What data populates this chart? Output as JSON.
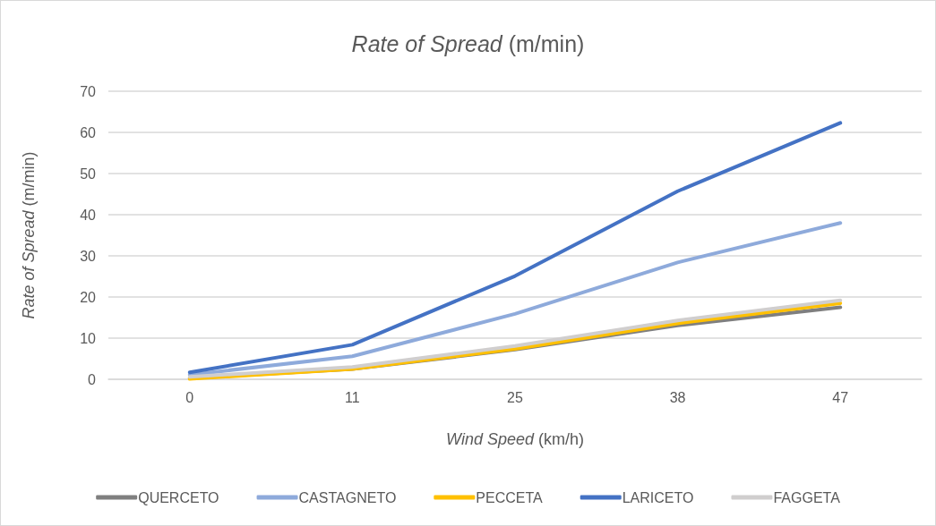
{
  "chart_data": {
    "type": "line",
    "title": "Rate of Spread (m/min)",
    "xlabel": "Wind Speed (km/h)",
    "ylabel": "Rate of Spread (m/min)",
    "categories": [
      "0",
      "11",
      "25",
      "38",
      "47"
    ],
    "series": [
      {
        "name": "QUERCETO",
        "color": "#7f7f7f",
        "values": [
          0.3,
          2.5,
          7.2,
          13.1,
          17.5
        ]
      },
      {
        "name": "CASTAGNETO",
        "color": "#8eaadb",
        "values": [
          1.1,
          5.6,
          15.9,
          28.4,
          38.0
        ]
      },
      {
        "name": "PECCETA",
        "color": "#ffc000",
        "values": [
          0.1,
          2.5,
          7.4,
          13.6,
          18.5
        ]
      },
      {
        "name": "LARICETO",
        "color": "#4472c4",
        "values": [
          1.7,
          8.4,
          25.1,
          45.7,
          62.3
        ]
      },
      {
        "name": "FAGGETA",
        "color": "#d0cece",
        "values": [
          0.6,
          3.0,
          8.1,
          14.3,
          19.2
        ]
      }
    ],
    "ylim": [
      0,
      70
    ],
    "yticks": [
      0,
      10,
      20,
      30,
      40,
      50,
      60,
      70
    ],
    "grid": "y",
    "legend": "bottom"
  }
}
